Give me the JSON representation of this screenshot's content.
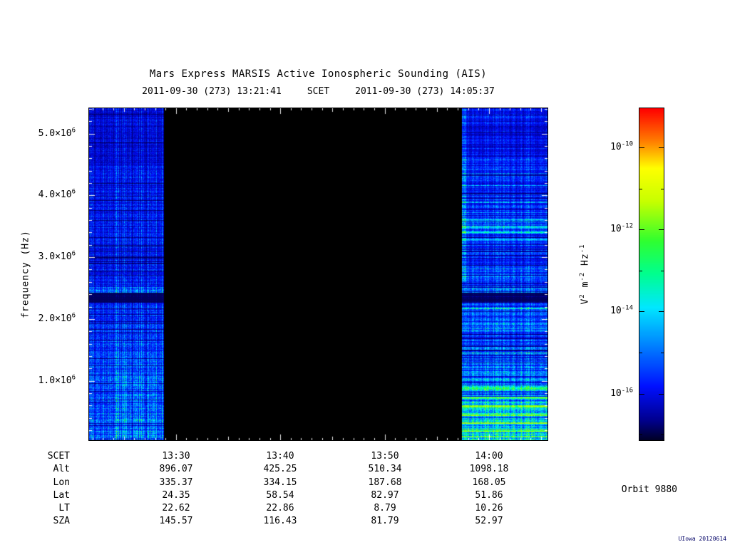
{
  "header": {
    "title": "Mars Express MARSIS Active Ionospheric Sounding (AIS)",
    "start_scet": "2011-09-30 (273) 13:21:41",
    "scet_label": "SCET",
    "end_scet": "2011-09-30 (273) 14:05:37"
  },
  "footer": {
    "orbit_label": "Orbit 9880",
    "credit": "UIowa 20120614"
  },
  "table": {
    "rows": [
      {
        "label": "SCET",
        "values": [
          "13:30",
          "13:40",
          "13:50",
          "14:00"
        ]
      },
      {
        "label": "Alt",
        "values": [
          "896.07",
          "425.25",
          "510.34",
          "1098.18"
        ]
      },
      {
        "label": "Lon",
        "values": [
          "335.37",
          "334.15",
          "187.68",
          "168.05"
        ]
      },
      {
        "label": "Lat",
        "values": [
          "24.35",
          "58.54",
          "82.97",
          "51.86"
        ]
      },
      {
        "label": "LT",
        "values": [
          "22.62",
          "22.86",
          "8.79",
          "10.26"
        ]
      },
      {
        "label": "SZA",
        "values": [
          "145.57",
          "116.43",
          "81.79",
          "52.97"
        ]
      }
    ]
  },
  "chart_data": {
    "type": "heatmap",
    "title": "Mars Express MARSIS Active Ionospheric Sounding (AIS)",
    "ylabel": "frequency (Hz)",
    "y_range_hz": [
      40000,
      5410000
    ],
    "y_ticks": [
      {
        "value_hz": 1000000,
        "mantissa": "1.0×10",
        "exponent": "6"
      },
      {
        "value_hz": 2000000,
        "mantissa": "2.0×10",
        "exponent": "6"
      },
      {
        "value_hz": 3000000,
        "mantissa": "3.0×10",
        "exponent": "6"
      },
      {
        "value_hz": 4000000,
        "mantissa": "4.0×10",
        "exponent": "6"
      },
      {
        "value_hz": 5000000,
        "mantissa": "5.0×10",
        "exponent": "6"
      }
    ],
    "x_start_scet": "2011-09-30 (273) 13:21:41",
    "x_end_scet": "2011-09-30 (273) 14:05:37",
    "x_duration_min": 43.93,
    "x_minor_tick_first_offset_min": 0.32,
    "x_ticks": [
      {
        "label": "13:30",
        "minutes_from_start": 8.32
      },
      {
        "label": "13:40",
        "minutes_from_start": 18.32
      },
      {
        "label": "13:50",
        "minutes_from_start": 28.32
      },
      {
        "label": "14:00",
        "minutes_from_start": 38.32
      }
    ],
    "active_time_spans_min": [
      [
        0,
        7.17
      ],
      [
        35.74,
        43.93
      ]
    ],
    "data_gap_note": "no data (black) from ~13:28:51 to ~13:57:25",
    "quiet_band_hz": [
      2270000,
      2430000
    ],
    "features": {
      "right_bright_rows": [
        {
          "f_hz": 3610000,
          "amp": 0.22
        },
        {
          "f_hz": 3490000,
          "amp": 0.26
        },
        {
          "f_hz": 3400000,
          "amp": 0.3
        },
        {
          "f_hz": 3290000,
          "amp": 0.22
        },
        {
          "f_hz": 877000,
          "amp": 0.3
        },
        {
          "f_hz": 727000,
          "amp": 0.33
        },
        {
          "f_hz": 589000,
          "amp": 0.36
        },
        {
          "f_hz": 450000,
          "amp": 0.38
        },
        {
          "f_hz": 317000,
          "amp": 0.34
        },
        {
          "f_hz": 213000,
          "amp": 0.3
        }
      ],
      "left_patch_f_hz": [
        100000,
        1400000
      ]
    },
    "palette_stops": [
      {
        "t": 0.0,
        "c": "#000028"
      },
      {
        "t": 0.06,
        "c": "#000090"
      },
      {
        "t": 0.16,
        "c": "#0010ff"
      },
      {
        "t": 0.3,
        "c": "#0090ff"
      },
      {
        "t": 0.4,
        "c": "#00e8ff"
      },
      {
        "t": 0.5,
        "c": "#00ff90"
      },
      {
        "t": 0.6,
        "c": "#30ff30"
      },
      {
        "t": 0.72,
        "c": "#c8ff00"
      },
      {
        "t": 0.82,
        "c": "#ffff00"
      },
      {
        "t": 0.9,
        "c": "#ff8000"
      },
      {
        "t": 1.0,
        "c": "#ff0000"
      }
    ],
    "colorbar": {
      "label_segments": [
        {
          "text": "V",
          "sup": "2"
        },
        {
          "text": " m",
          "sup": "-2"
        },
        {
          "text": " Hz",
          "sup": "-1"
        }
      ],
      "ticks": [
        {
          "base": "10",
          "exp": "-10",
          "frac": 0.118
        },
        {
          "base": "10",
          "exp": "-12",
          "frac": 0.365
        },
        {
          "base": "10",
          "exp": "-14",
          "frac": 0.612
        },
        {
          "base": "10",
          "exp": "-16",
          "frac": 0.86
        }
      ]
    }
  }
}
